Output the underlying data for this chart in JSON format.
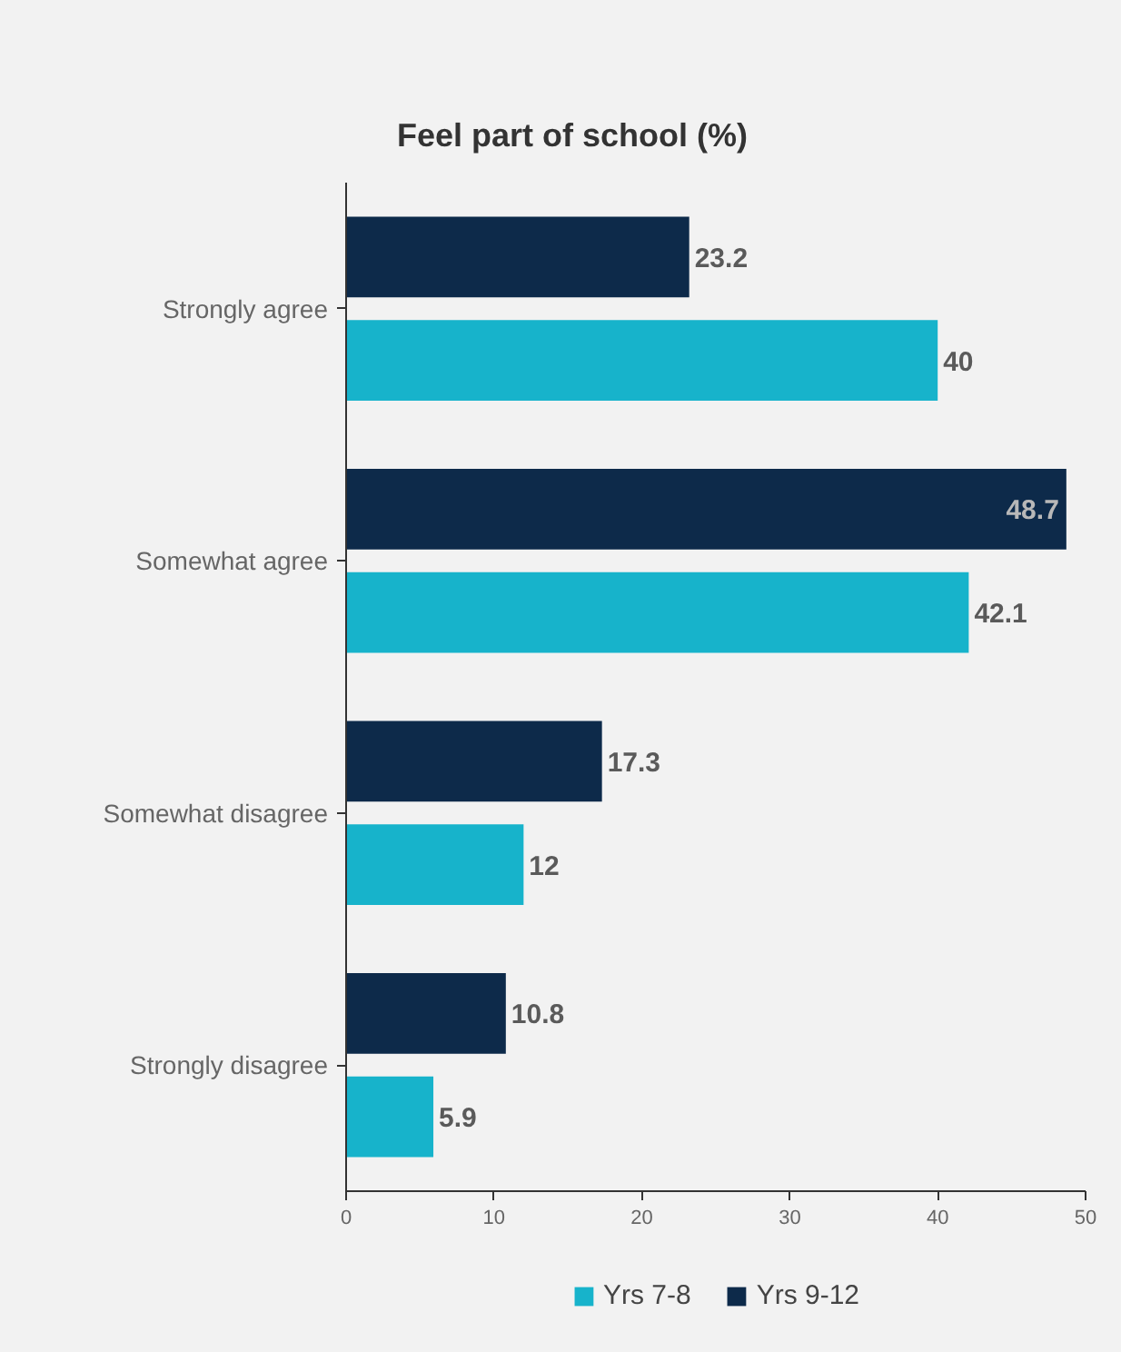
{
  "chart_data": {
    "type": "bar",
    "orientation": "horizontal",
    "title": "Feel part of school (%)",
    "categories": [
      "Strongly agree",
      "Somewhat agree",
      "Somewhat disagree",
      "Strongly disagree"
    ],
    "series": [
      {
        "name": "Yrs 7-8",
        "color": "#17b3cb",
        "values": [
          40,
          42.1,
          12,
          5.9
        ]
      },
      {
        "name": "Yrs 9-12",
        "color": "#0d2a4a",
        "values": [
          23.2,
          48.7,
          17.3,
          10.8
        ]
      }
    ],
    "xlim": [
      0,
      50
    ],
    "xticks": [
      0,
      10,
      20,
      30,
      40,
      50
    ],
    "data_labels": true,
    "grid": false,
    "legend": "bottom"
  }
}
